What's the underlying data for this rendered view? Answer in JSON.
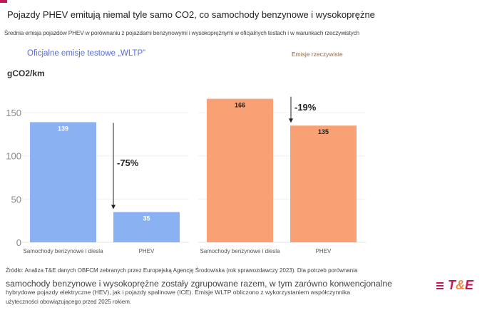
{
  "header": {
    "title": "Pojazdy PHEV emitują niemal tyle samo CO2, co samochody benzynowe i wysokoprężne",
    "subtitle": "Średnia emisja pojazdów PHEV w porównaniu z pojazdami benzynowymi i wysokoprężnymi w oficjalnych testach i w warunkach rzeczywistych"
  },
  "chart_data": [
    {
      "type": "bar",
      "title": "Oficjalne emisje testowe „WLTP”",
      "ylabel": "gCO2/km",
      "ylim": [
        0,
        175
      ],
      "yticks": [
        0,
        50,
        100,
        150
      ],
      "categories": [
        "Samochody benzynowe i diesla",
        "PHEV"
      ],
      "values": [
        139,
        35
      ],
      "color": "#8ab1f2",
      "annotation": "-75%",
      "grid": true
    },
    {
      "type": "bar",
      "title": "Emisje rzeczywiste",
      "ylim": [
        0,
        175
      ],
      "categories": [
        "Samochody benzynowe i diesla",
        "PHEV"
      ],
      "values": [
        166,
        135
      ],
      "color": "#f9a074",
      "annotation": "-19%",
      "grid": true
    }
  ],
  "footer": {
    "line1": "Źródło: Analiza T&E danych OBFCM zebranych przez Europejską Agencję Środowiska (rok sprawozdawczy 2023). Dla potrzeb porównania",
    "line2": "samochody benzynowe i wysokoprężne zostały zgrupowane razem, w tym zarówno konwencjonalne",
    "line3": "hybrydowe pojazdy elektryczne (HEV), jak i pojazdy spalinowe (ICE). Emisje WLTP obliczono z wykorzystaniem współczynnika",
    "line4": "użyteczności obowiązującego przed 2025 rokiem."
  },
  "logo": {
    "text_t": "T",
    "text_amp": "&",
    "text_e": "E"
  }
}
